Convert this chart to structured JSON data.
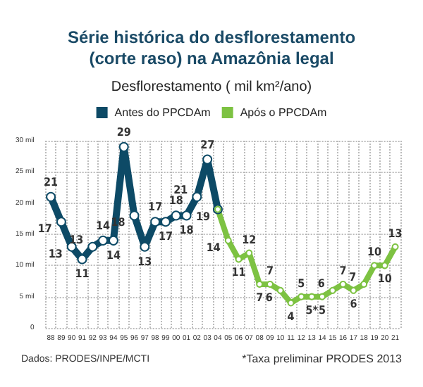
{
  "chart_data": {
    "type": "line",
    "title": "Série histórica do desflorestamento\n(corte raso) na Amazônia legal",
    "subtitle": "Desflorestamento ( mil km²/ano)",
    "categories": [
      "88",
      "89",
      "90",
      "91",
      "92",
      "93",
      "94",
      "95",
      "96",
      "97",
      "98",
      "99",
      "00",
      "01",
      "02",
      "03",
      "04",
      "05",
      "06",
      "07",
      "08",
      "09",
      "10",
      "11",
      "12",
      "13",
      "14",
      "15",
      "16",
      "17",
      "18",
      "19",
      "20",
      "21"
    ],
    "series": [
      {
        "name": "Antes do PPCDAm",
        "color": "#0d4a66",
        "values": [
          21,
          17,
          13,
          11,
          13,
          14,
          14,
          29,
          18,
          13,
          17,
          17,
          18,
          18,
          21,
          27,
          19,
          null,
          null,
          null,
          null,
          null,
          null,
          null,
          null,
          null,
          null,
          null,
          null,
          null,
          null,
          null,
          null,
          null
        ],
        "value_labels": [
          "21",
          "17",
          "13",
          "11",
          "13",
          "14",
          "14",
          "29",
          "18",
          "13",
          "17",
          "17",
          "18",
          "18",
          "21",
          "27",
          null,
          null,
          null,
          null,
          null,
          null,
          null,
          null,
          null,
          null,
          null,
          null,
          null,
          null,
          null,
          null,
          null,
          null
        ]
      },
      {
        "name": "Após o PPCDAm",
        "color": "#7dc242",
        "values": [
          null,
          null,
          null,
          null,
          null,
          null,
          null,
          null,
          null,
          null,
          null,
          null,
          null,
          null,
          null,
          null,
          19,
          14,
          11,
          12,
          7,
          7,
          6,
          4,
          5,
          5,
          5,
          6,
          7,
          6,
          7,
          10,
          10,
          13
        ],
        "value_labels": [
          null,
          null,
          null,
          null,
          null,
          null,
          null,
          null,
          null,
          null,
          null,
          null,
          null,
          null,
          null,
          null,
          "19",
          "14",
          "11",
          "12",
          "7",
          "7",
          "6",
          "4",
          "5",
          "5*",
          "5",
          "6",
          "7",
          "6",
          "7",
          "10",
          "10",
          "13"
        ]
      }
    ],
    "ylim": [
      0,
      30
    ],
    "yticks": [
      0,
      {
        "value": 5,
        "label": "5 mil"
      },
      {
        "value": 10,
        "label": "10 mil"
      },
      {
        "value": 15,
        "label": "15 mil"
      },
      {
        "value": 20,
        "label": "20 mil"
      },
      {
        "value": 25,
        "label": "25 mil"
      },
      {
        "value": 30,
        "label": "30 mil"
      }
    ],
    "grid": true,
    "legend": "top",
    "marker": "circle",
    "line_style": "solid",
    "annotations": [
      "Dados: PRODES/INPE/MCTI",
      "*Taxa preliminar PRODES 2013"
    ]
  }
}
